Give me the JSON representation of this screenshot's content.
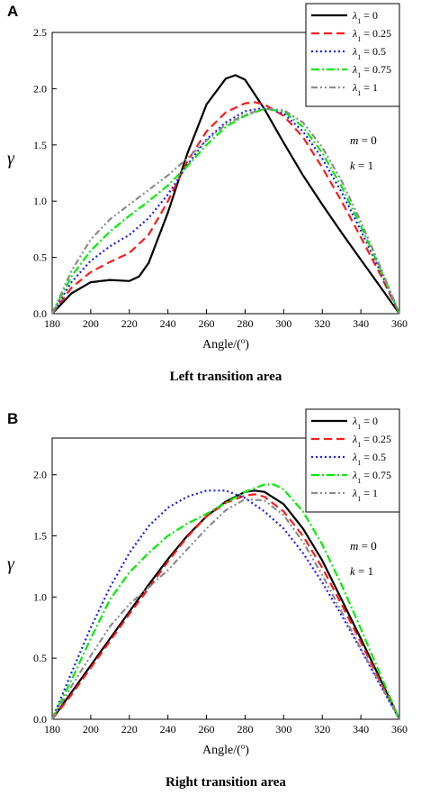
{
  "chart_data": [
    {
      "panel_label": "A",
      "type": "line",
      "title": "Left transition area",
      "xlabel": "Angle/(o)",
      "ylabel": "γ",
      "xlim": [
        180,
        360
      ],
      "ylim": [
        0,
        2.5
      ],
      "xticks": [
        180,
        200,
        220,
        240,
        260,
        280,
        300,
        320,
        340,
        360
      ],
      "yticks": [
        0.0,
        0.5,
        1.0,
        1.5,
        2.0,
        2.5
      ],
      "tick_labels_y": [
        "0.0",
        "0.5",
        "1.0",
        "1.5",
        "2.0",
        "2.5"
      ],
      "legend_position": "top-right",
      "annotations": {
        "m": "m = 0",
        "k": "k = 1"
      },
      "series": [
        {
          "name": "λ1 = 0",
          "color": "#000000",
          "dash": "solid",
          "x": [
            180,
            190,
            200,
            210,
            220,
            225,
            230,
            240,
            250,
            260,
            270,
            275,
            280,
            290,
            300,
            310,
            320,
            330,
            340,
            350,
            360
          ],
          "y": [
            0.0,
            0.18,
            0.28,
            0.3,
            0.29,
            0.33,
            0.45,
            0.9,
            1.42,
            1.86,
            2.09,
            2.12,
            2.08,
            1.82,
            1.52,
            1.23,
            0.97,
            0.72,
            0.48,
            0.24,
            0.0
          ]
        },
        {
          "name": "λ1 = 0.25",
          "color": "#ff1a1a",
          "dash": "long-dash",
          "x": [
            180,
            190,
            200,
            210,
            220,
            230,
            240,
            250,
            260,
            270,
            280,
            285,
            290,
            300,
            310,
            320,
            330,
            340,
            350,
            360
          ],
          "y": [
            0.0,
            0.23,
            0.37,
            0.46,
            0.54,
            0.7,
            1.0,
            1.35,
            1.62,
            1.79,
            1.87,
            1.88,
            1.86,
            1.76,
            1.57,
            1.3,
            1.0,
            0.68,
            0.35,
            0.0
          ]
        },
        {
          "name": "λ1 = 0.5",
          "color": "#1a1aff",
          "dash": "dot",
          "x": [
            180,
            190,
            200,
            210,
            220,
            230,
            240,
            250,
            260,
            270,
            280,
            290,
            300,
            310,
            320,
            330,
            340,
            350,
            360
          ],
          "y": [
            0.0,
            0.28,
            0.47,
            0.6,
            0.7,
            0.85,
            1.06,
            1.32,
            1.55,
            1.7,
            1.8,
            1.83,
            1.78,
            1.62,
            1.38,
            1.08,
            0.74,
            0.38,
            0.0
          ]
        },
        {
          "name": "λ1 = 0.75",
          "color": "#00ee00",
          "dash": "dash-dot",
          "x": [
            180,
            190,
            200,
            210,
            220,
            230,
            240,
            250,
            260,
            270,
            280,
            290,
            300,
            310,
            320,
            330,
            340,
            350,
            360
          ],
          "y": [
            0.0,
            0.33,
            0.56,
            0.73,
            0.87,
            1.0,
            1.14,
            1.31,
            1.5,
            1.66,
            1.76,
            1.82,
            1.8,
            1.66,
            1.43,
            1.13,
            0.78,
            0.4,
            0.0
          ]
        },
        {
          "name": "λ1 = 1",
          "color": "#8c8c8c",
          "dash": "dash-dot-dot",
          "x": [
            180,
            190,
            200,
            210,
            220,
            230,
            240,
            250,
            260,
            270,
            280,
            290,
            300,
            310,
            320,
            330,
            340,
            350,
            360
          ],
          "y": [
            0.0,
            0.38,
            0.66,
            0.84,
            0.97,
            1.1,
            1.23,
            1.38,
            1.54,
            1.68,
            1.77,
            1.82,
            1.81,
            1.7,
            1.48,
            1.18,
            0.82,
            0.42,
            0.0
          ]
        }
      ]
    },
    {
      "panel_label": "B",
      "type": "line",
      "title": "Right transition area",
      "xlabel": "Angle/(o)",
      "ylabel": "γ",
      "xlim": [
        180,
        360
      ],
      "ylim": [
        0,
        2.3
      ],
      "xticks": [
        180,
        200,
        220,
        240,
        260,
        280,
        300,
        320,
        340,
        360
      ],
      "yticks": [
        0.0,
        0.5,
        1.0,
        1.5,
        2.0
      ],
      "tick_labels_y": [
        "0.0",
        "0.5",
        "1.0",
        "1.5",
        "2.0"
      ],
      "legend_position": "top-right",
      "annotations": {
        "m": "m = 0",
        "k": "k = 1"
      },
      "series": [
        {
          "name": "λ1 = 0",
          "color": "#000000",
          "dash": "solid",
          "x": [
            180,
            190,
            200,
            210,
            220,
            230,
            240,
            250,
            260,
            270,
            280,
            285,
            290,
            300,
            310,
            320,
            330,
            340,
            350,
            360
          ],
          "y": [
            0.0,
            0.22,
            0.44,
            0.66,
            0.88,
            1.1,
            1.31,
            1.5,
            1.66,
            1.78,
            1.86,
            1.87,
            1.86,
            1.76,
            1.56,
            1.3,
            0.98,
            0.66,
            0.33,
            0.0
          ]
        },
        {
          "name": "λ1 = 0.25",
          "color": "#ff1a1a",
          "dash": "long-dash",
          "x": [
            180,
            190,
            200,
            210,
            220,
            230,
            240,
            250,
            260,
            270,
            280,
            285,
            290,
            300,
            310,
            320,
            330,
            340,
            350,
            360
          ],
          "y": [
            0.0,
            0.2,
            0.42,
            0.64,
            0.86,
            1.07,
            1.29,
            1.49,
            1.66,
            1.77,
            1.83,
            1.84,
            1.82,
            1.7,
            1.5,
            1.24,
            0.94,
            0.63,
            0.31,
            0.0
          ]
        },
        {
          "name": "λ1 = 0.5",
          "color": "#1a1aff",
          "dash": "dot",
          "x": [
            180,
            190,
            200,
            210,
            220,
            230,
            240,
            250,
            260,
            270,
            280,
            290,
            300,
            310,
            320,
            330,
            340,
            350,
            360
          ],
          "y": [
            0.0,
            0.38,
            0.75,
            1.08,
            1.36,
            1.58,
            1.73,
            1.82,
            1.87,
            1.87,
            1.81,
            1.7,
            1.56,
            1.36,
            1.12,
            0.85,
            0.57,
            0.28,
            0.0
          ]
        },
        {
          "name": "λ1 = 0.75",
          "color": "#00ee00",
          "dash": "dash-dot",
          "x": [
            180,
            190,
            200,
            210,
            220,
            230,
            240,
            250,
            260,
            270,
            280,
            290,
            295,
            300,
            310,
            320,
            330,
            340,
            350,
            360
          ],
          "y": [
            0.0,
            0.32,
            0.66,
            0.98,
            1.2,
            1.36,
            1.5,
            1.6,
            1.68,
            1.77,
            1.86,
            1.92,
            1.92,
            1.88,
            1.7,
            1.43,
            1.1,
            0.74,
            0.37,
            0.0
          ]
        },
        {
          "name": "λ1 = 1",
          "color": "#8c8c8c",
          "dash": "dash-dot-dot",
          "x": [
            180,
            190,
            200,
            210,
            220,
            230,
            240,
            250,
            260,
            270,
            280,
            290,
            300,
            310,
            320,
            330,
            340,
            350,
            360
          ],
          "y": [
            0.0,
            0.27,
            0.52,
            0.76,
            0.94,
            1.08,
            1.22,
            1.39,
            1.56,
            1.71,
            1.8,
            1.79,
            1.67,
            1.45,
            1.18,
            0.88,
            0.58,
            0.29,
            0.0
          ]
        }
      ]
    }
  ]
}
